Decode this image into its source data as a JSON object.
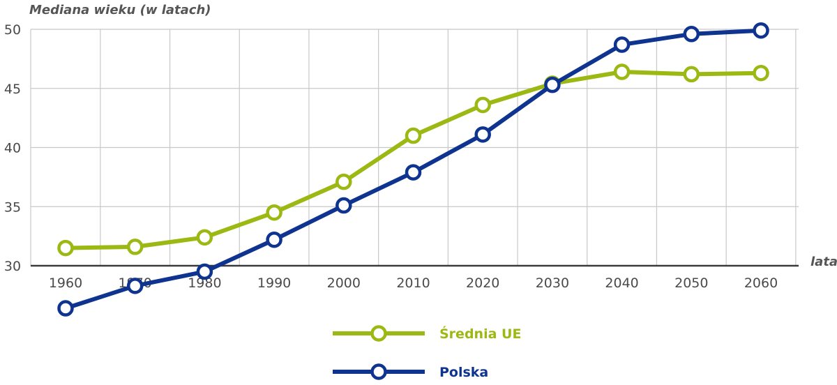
{
  "chart_data": {
    "type": "line",
    "ylabel": "Mediana wieku (w latach)",
    "xlabel": "lata",
    "categories": [
      "1960",
      "1970",
      "1980",
      "1990",
      "2000",
      "2010",
      "2020",
      "2030",
      "2040",
      "2050",
      "2060"
    ],
    "ylim": [
      30,
      50
    ],
    "yticks": [
      30,
      35,
      40,
      45,
      50
    ],
    "grid": true,
    "legend_position": "bottom-center",
    "series": [
      {
        "name": "Średnia UE",
        "color": "#9bb813",
        "values": [
          31.5,
          31.6,
          32.4,
          34.5,
          37.1,
          41.0,
          43.6,
          45.4,
          46.4,
          46.2,
          46.3
        ]
      },
      {
        "name": "Polska",
        "color": "#0e3490",
        "values": [
          26.4,
          28.3,
          29.5,
          32.2,
          35.1,
          37.9,
          41.1,
          45.3,
          48.7,
          49.6,
          49.9
        ]
      }
    ]
  }
}
